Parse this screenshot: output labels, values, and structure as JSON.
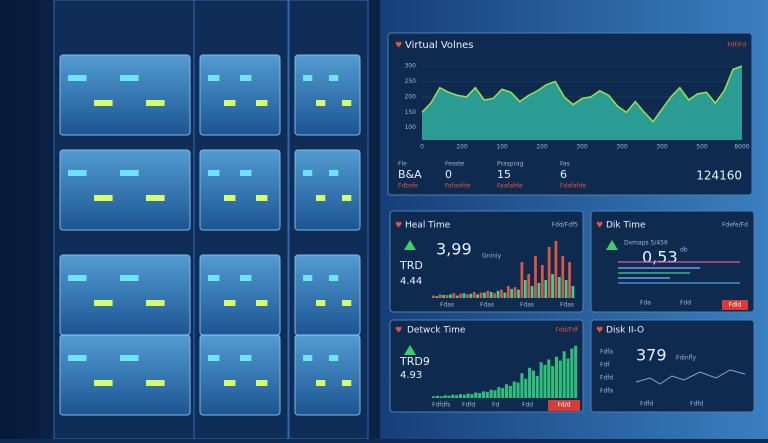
{
  "volumes": {
    "title": "Virtual Volnes",
    "badge": "Fdf/Fd",
    "ylim": [
      60,
      320
    ],
    "yticks": [
      300,
      250,
      200,
      150,
      100
    ],
    "xticks": [
      "0",
      "200",
      "100",
      "200",
      "300",
      "300",
      "300",
      "500",
      "8000"
    ],
    "color": "#2fa99a",
    "line": "#9be34a",
    "values": [
      150,
      180,
      230,
      215,
      205,
      200,
      230,
      190,
      195,
      225,
      215,
      185,
      205,
      220,
      240,
      250,
      200,
      175,
      195,
      200,
      220,
      205,
      170,
      150,
      185,
      150,
      120,
      160,
      200,
      230,
      190,
      210,
      215,
      180,
      220,
      290,
      300
    ],
    "stats": [
      {
        "label": "Fle",
        "value": "B&A",
        "sub": "Fdbsfe"
      },
      {
        "label": "Fesste",
        "value": "0",
        "sub": "Fafaofde"
      },
      {
        "label": "Prasprag",
        "value": "15",
        "sub": "Faafafde"
      },
      {
        "label": "Fas",
        "value": "6",
        "sub": "Fdafafde"
      }
    ],
    "total": "124160"
  },
  "heal": {
    "title": "Heal Time",
    "badge": "Fdd/Fdf5",
    "value": "3,99",
    "note": "Gniniy",
    "code": "TRD",
    "sub": "4.44",
    "ylim": [
      0,
      100
    ],
    "series": [
      {
        "color": "#e0553f",
        "values": [
          4,
          6,
          5,
          8,
          7,
          6,
          10,
          9,
          12,
          8,
          14,
          20,
          18,
          60,
          40,
          70,
          55,
          85,
          95,
          70,
          60
        ]
      },
      {
        "color": "#3fcf9a",
        "values": [
          3,
          5,
          6,
          4,
          8,
          7,
          6,
          9,
          10,
          12,
          9,
          15,
          14,
          30,
          20,
          25,
          30,
          40,
          35,
          30,
          20
        ]
      }
    ],
    "xticks": [
      "Fdas",
      "Fdas",
      "Fdas",
      "Fdas"
    ]
  },
  "disk": {
    "title": "Dik Time",
    "badge": "Fdefe/Fd",
    "value": "0,53",
    "unit": "db",
    "note": "Dxmaps 5/456",
    "button": "Fdld",
    "xticks": [
      "Fda",
      "Fdd"
    ]
  },
  "net": {
    "title": "Detwck Time",
    "badge": "Fdd/Fdf",
    "code": "TRD9",
    "sub": "4.93",
    "button": "Fd/d",
    "ylim": [
      0,
      100
    ],
    "color": "#2fbf7a",
    "values": [
      3,
      4,
      3,
      5,
      4,
      6,
      5,
      7,
      6,
      8,
      7,
      10,
      9,
      12,
      11,
      15,
      14,
      20,
      18,
      25,
      22,
      30,
      28,
      45,
      35,
      55,
      50,
      40,
      65,
      60,
      70,
      58,
      75,
      68,
      85,
      72,
      90,
      95
    ],
    "xticks": [
      "Fdfdfs",
      "Fdfd",
      "Fd",
      "Fdd"
    ]
  },
  "io": {
    "title": "Disk II-O",
    "value": "379",
    "note": "Fdinfly",
    "ylabels": [
      "Fdfa",
      "Fdf",
      "Fdfd",
      "Fdfa"
    ],
    "xticks": [
      "Fdfd",
      "Fdfd"
    ]
  }
}
